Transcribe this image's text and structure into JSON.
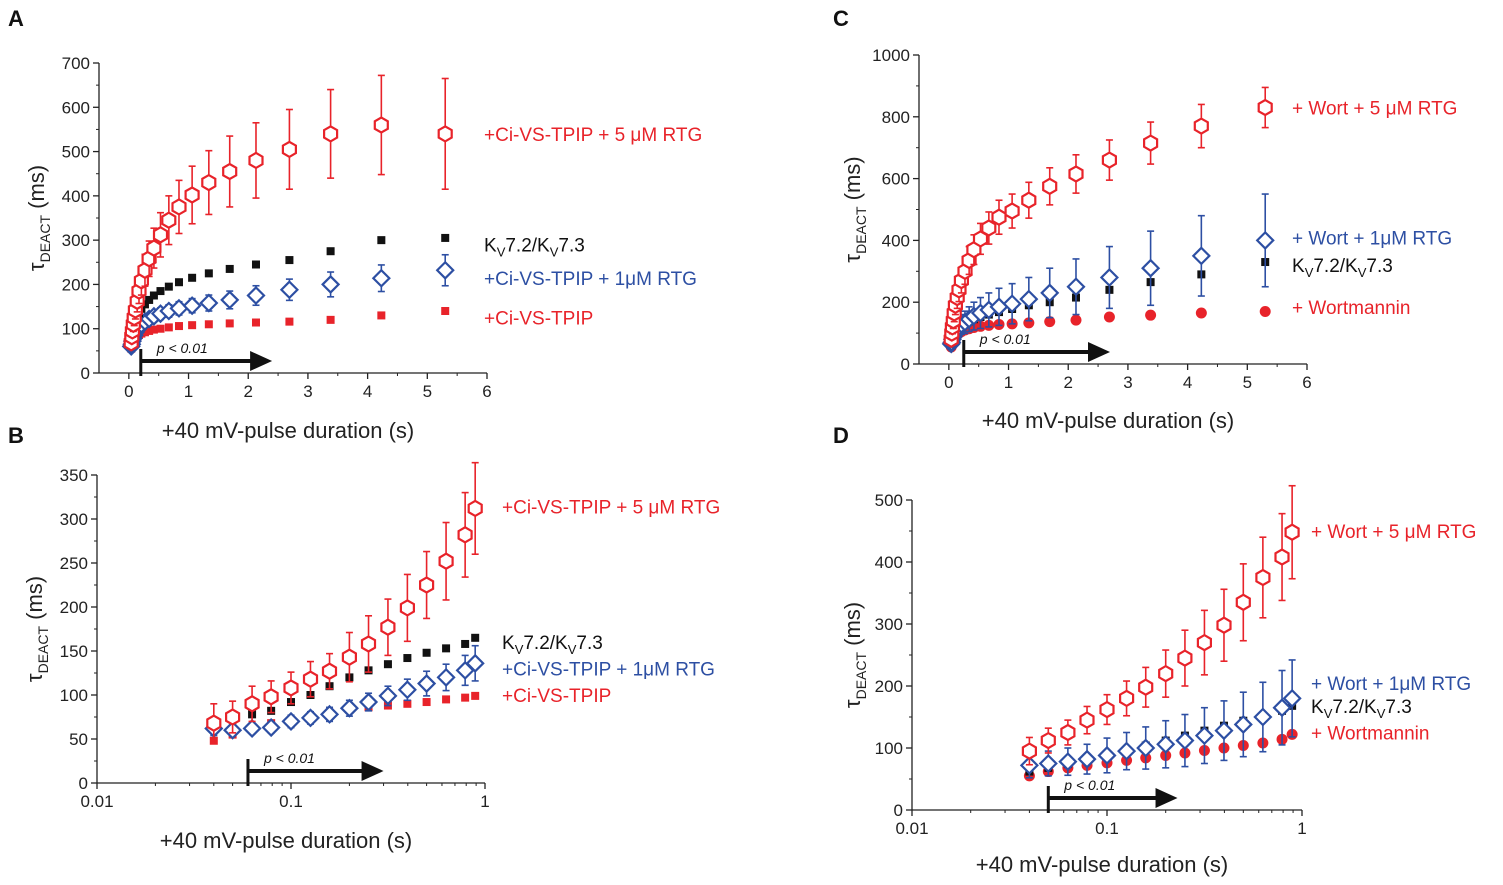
{
  "figure": {
    "colors": {
      "red": "#e8232a",
      "blue": "#2d4fa3",
      "black": "#111111"
    }
  },
  "chart_data": [
    {
      "id": "A",
      "panel_label": "A",
      "type": "scatter",
      "xscale": "linear",
      "xlim": [
        -0.5,
        6
      ],
      "ylim": [
        0,
        700
      ],
      "xticks": [
        0,
        1,
        2,
        3,
        4,
        5,
        6
      ],
      "xtick_labels": [
        "0",
        "1",
        "2",
        "3",
        "4",
        "5",
        "6"
      ],
      "yticks": [
        0,
        100,
        200,
        300,
        400,
        500,
        600,
        700
      ],
      "ytick_labels": [
        "0",
        "100",
        "200",
        "300",
        "400",
        "500",
        "600",
        "700"
      ],
      "xlabel": "+40 mV-pulse duration (s)",
      "ylabel_main": "τ",
      "ylabel_sub": "DEACT",
      "ylabel_unit": " (ms)",
      "pvalue": {
        "text": "p < 0.01",
        "x_start": 0.2,
        "x_end": 2.4
      },
      "x": [
        0.04,
        0.05,
        0.06,
        0.075,
        0.09,
        0.11,
        0.14,
        0.17,
        0.21,
        0.27,
        0.34,
        0.42,
        0.53,
        0.67,
        0.84,
        1.06,
        1.34,
        1.69,
        2.13,
        2.69,
        3.38,
        4.23,
        5.3
      ],
      "series": [
        {
          "name": "+Ci-VS-TPIP + 5 μM RTG",
          "marker": "hexagon-open",
          "color": "red",
          "values": [
            68,
            82,
            95,
            110,
            125,
            142,
            162,
            185,
            208,
            232,
            258,
            282,
            312,
            345,
            375,
            402,
            430,
            455,
            480,
            505,
            540,
            560,
            540
          ],
          "errors": [
            10,
            12,
            14,
            16,
            18,
            20,
            24,
            28,
            32,
            36,
            40,
            45,
            50,
            55,
            60,
            65,
            72,
            80,
            85,
            90,
            100,
            112,
            125
          ]
        },
        {
          "name": "KV7.2/KV7.3",
          "marker": "square",
          "color": "black",
          "values": [
            65,
            75,
            85,
            95,
            105,
            115,
            125,
            135,
            145,
            155,
            165,
            175,
            185,
            195,
            205,
            215,
            225,
            235,
            245,
            255,
            275,
            300,
            305
          ],
          "errors": []
        },
        {
          "name": "+Ci-VS-TPIP + 1μM RTG",
          "marker": "diamond-open",
          "color": "blue",
          "values": [
            60,
            65,
            72,
            78,
            85,
            92,
            98,
            104,
            110,
            116,
            122,
            128,
            134,
            140,
            146,
            152,
            158,
            165,
            175,
            188,
            200,
            214,
            232
          ],
          "errors": [
            6,
            6,
            7,
            7,
            8,
            8,
            9,
            9,
            10,
            10,
            11,
            12,
            13,
            14,
            15,
            16,
            18,
            20,
            22,
            24,
            28,
            30,
            35
          ]
        },
        {
          "name": "+Ci-VS-TPIP",
          "marker": "square",
          "color": "red",
          "values": [
            55,
            60,
            65,
            70,
            74,
            78,
            82,
            86,
            89,
            92,
            95,
            98,
            100,
            103,
            106,
            108,
            110,
            112,
            114,
            116,
            120,
            130,
            140
          ],
          "errors": []
        }
      ],
      "legend": [
        {
          "text": "+Ci-VS-TPIP + 5 μM RTG",
          "color": "red",
          "y": 540
        },
        {
          "text": "KV7.2/KV7.3",
          "color": "black",
          "y": 290,
          "k": true
        },
        {
          "text": "+Ci-VS-TPIP + 1μM RTG",
          "color": "blue",
          "y": 215
        },
        {
          "text": "+Ci-VS-TPIP",
          "color": "red",
          "y": 125
        }
      ]
    },
    {
      "id": "B",
      "panel_label": "B",
      "type": "scatter",
      "xscale": "log",
      "xlim": [
        0.01,
        1
      ],
      "ylim": [
        0,
        350
      ],
      "xticks": [
        0.01,
        0.1,
        1
      ],
      "xtick_labels": [
        "0.01",
        "0.1",
        "1"
      ],
      "yticks": [
        0,
        50,
        100,
        150,
        200,
        250,
        300,
        350
      ],
      "ytick_labels": [
        "0",
        "50",
        "100",
        "150",
        "200",
        "250",
        "300",
        "350"
      ],
      "xlabel": "+40 mV-pulse duration (s)",
      "ylabel_main": "τ",
      "ylabel_sub": "DEACT",
      "ylabel_unit": " (ms)",
      "pvalue": {
        "text": "p < 0.01",
        "x_start": 0.06,
        "x_end": 0.3
      },
      "x": [
        0.04,
        0.05,
        0.063,
        0.079,
        0.1,
        0.126,
        0.158,
        0.2,
        0.251,
        0.316,
        0.398,
        0.5,
        0.63,
        0.79,
        0.89
      ],
      "series": [
        {
          "name": "+Ci-VS-TPIP + 5 μM RTG",
          "marker": "hexagon-open",
          "color": "red",
          "values": [
            68,
            75,
            90,
            98,
            108,
            118,
            127,
            143,
            158,
            177,
            199,
            225,
            252,
            282,
            312
          ],
          "errors": [
            22,
            18,
            20,
            18,
            18,
            20,
            20,
            28,
            32,
            32,
            38,
            38,
            44,
            48,
            52
          ]
        },
        {
          "name": "KV7.2/KV7.3",
          "marker": "square",
          "color": "black",
          "values": [
            68,
            72,
            78,
            82,
            92,
            100,
            110,
            120,
            128,
            135,
            142,
            148,
            153,
            158,
            165
          ],
          "errors": []
        },
        {
          "name": "+Ci-VS-TPIP + 1μM RTG",
          "marker": "diamond-open",
          "color": "blue",
          "values": [
            62,
            60,
            62,
            63,
            70,
            74,
            78,
            85,
            92,
            99,
            106,
            113,
            120,
            128,
            136
          ],
          "errors": [
            8,
            6,
            6,
            6,
            7,
            7,
            8,
            9,
            10,
            11,
            12,
            14,
            15,
            17,
            20
          ]
        },
        {
          "name": "+Ci-VS-TPIP",
          "marker": "square",
          "color": "red",
          "values": [
            48,
            55,
            62,
            68,
            72,
            76,
            80,
            83,
            86,
            88,
            90,
            92,
            95,
            97,
            99
          ],
          "errors": []
        }
      ],
      "legend": [
        {
          "text": "+Ci-VS-TPIP + 5 μM RTG",
          "color": "red",
          "y": 314
        },
        {
          "text": "KV7.2/KV7.3",
          "color": "black",
          "y": 160,
          "k": true
        },
        {
          "text": "+Ci-VS-TPIP + 1μM RTG",
          "color": "blue",
          "y": 130
        },
        {
          "text": "+Ci-VS-TPIP",
          "color": "red",
          "y": 100
        }
      ]
    },
    {
      "id": "C",
      "panel_label": "C",
      "type": "scatter",
      "xscale": "linear",
      "xlim": [
        -0.5,
        6
      ],
      "ylim": [
        0,
        1000
      ],
      "xticks": [
        0,
        1,
        2,
        3,
        4,
        5,
        6
      ],
      "xtick_labels": [
        "0",
        "1",
        "2",
        "3",
        "4",
        "5",
        "6"
      ],
      "yticks": [
        0,
        200,
        400,
        600,
        800,
        1000
      ],
      "ytick_labels": [
        "0",
        "200",
        "400",
        "600",
        "800",
        "1000"
      ],
      "xlabel": "+40 mV-pulse duration (s)",
      "ylabel_main": "τ",
      "ylabel_sub": "DEACT",
      "ylabel_unit": " (ms)",
      "pvalue": {
        "text": "p < 0.01",
        "x_start": 0.25,
        "x_end": 2.7
      },
      "x": [
        0.04,
        0.05,
        0.06,
        0.075,
        0.09,
        0.11,
        0.14,
        0.17,
        0.21,
        0.27,
        0.34,
        0.42,
        0.53,
        0.67,
        0.84,
        1.06,
        1.34,
        1.69,
        2.13,
        2.69,
        3.38,
        4.23,
        5.3
      ],
      "series": [
        {
          "name": "+ Wort + 5 μM RTG",
          "marker": "hexagon-open",
          "color": "red",
          "values": [
            80,
            100,
            120,
            140,
            165,
            190,
            215,
            240,
            270,
            300,
            335,
            370,
            405,
            440,
            475,
            495,
            530,
            575,
            615,
            660,
            715,
            770,
            830
          ],
          "errors": [
            15,
            20,
            22,
            25,
            28,
            30,
            35,
            38,
            40,
            42,
            45,
            48,
            50,
            52,
            55,
            55,
            58,
            60,
            62,
            65,
            68,
            70,
            65
          ]
        },
        {
          "name": "+ Wort + 1μM RTG",
          "marker": "diamond-open",
          "color": "blue",
          "values": [
            65,
            70,
            80,
            88,
            95,
            105,
            112,
            120,
            128,
            135,
            145,
            155,
            165,
            175,
            185,
            195,
            210,
            230,
            250,
            280,
            310,
            350,
            400
          ],
          "errors": [
            10,
            12,
            14,
            16,
            18,
            20,
            24,
            28,
            32,
            36,
            40,
            45,
            50,
            55,
            60,
            65,
            70,
            80,
            90,
            100,
            120,
            130,
            150
          ]
        },
        {
          "name": "KV7.2/KV7.3",
          "marker": "square",
          "color": "black",
          "values": [
            60,
            70,
            78,
            85,
            92,
            100,
            108,
            115,
            122,
            130,
            138,
            145,
            152,
            160,
            168,
            178,
            190,
            200,
            215,
            240,
            265,
            290,
            330
          ],
          "errors": []
        },
        {
          "name": "+ Wortmannin",
          "marker": "circle",
          "color": "red",
          "values": [
            55,
            62,
            70,
            75,
            82,
            88,
            95,
            100,
            105,
            110,
            114,
            118,
            122,
            125,
            128,
            130,
            133,
            137,
            142,
            152,
            158,
            165,
            170
          ],
          "errors": []
        }
      ],
      "legend": [
        {
          "text": "+ Wort + 5 μM RTG",
          "color": "red",
          "y": 830
        },
        {
          "text": "+ Wort + 1μM RTG",
          "color": "blue",
          "y": 410
        },
        {
          "text": "KV7.2/KV7.3",
          "color": "black",
          "y": 320,
          "k": true
        },
        {
          "text": "+ Wortmannin",
          "color": "red",
          "y": 185
        }
      ]
    },
    {
      "id": "D",
      "panel_label": "D",
      "type": "scatter",
      "xscale": "log",
      "xlim": [
        0.01,
        1
      ],
      "ylim": [
        0,
        500
      ],
      "xticks": [
        0.01,
        0.1,
        1
      ],
      "xtick_labels": [
        "0.01",
        "0.1",
        "1"
      ],
      "yticks": [
        0,
        100,
        200,
        300,
        400,
        500
      ],
      "ytick_labels": [
        "0",
        "100",
        "200",
        "300",
        "400",
        "500"
      ],
      "xlabel": "+40 mV-pulse duration (s)",
      "ylabel_main": "τ",
      "ylabel_sub": "DEACT",
      "ylabel_unit": " (ms)",
      "pvalue": {
        "text": "p < 0.01",
        "x_start": 0.05,
        "x_end": 0.23
      },
      "x": [
        0.04,
        0.05,
        0.063,
        0.079,
        0.1,
        0.126,
        0.158,
        0.2,
        0.251,
        0.316,
        0.398,
        0.5,
        0.63,
        0.79,
        0.89
      ],
      "series": [
        {
          "name": "+ Wort + 5 μM RTG",
          "marker": "hexagon-open",
          "color": "red",
          "values": [
            95,
            112,
            125,
            145,
            162,
            180,
            198,
            220,
            245,
            270,
            298,
            335,
            375,
            408,
            448
          ],
          "errors": [
            22,
            20,
            20,
            22,
            24,
            28,
            32,
            38,
            45,
            52,
            58,
            62,
            65,
            70,
            75
          ]
        },
        {
          "name": "+ Wort + 1μM RTG",
          "marker": "diamond-open",
          "color": "blue",
          "values": [
            72,
            75,
            78,
            82,
            88,
            95,
            100,
            106,
            112,
            120,
            128,
            138,
            150,
            165,
            180
          ],
          "errors": [
            20,
            20,
            22,
            24,
            28,
            30,
            34,
            38,
            42,
            45,
            48,
            52,
            56,
            60,
            62
          ]
        },
        {
          "name": "KV7.2/KV7.3",
          "marker": "square",
          "color": "black",
          "values": [
            62,
            68,
            74,
            80,
            88,
            96,
            104,
            112,
            120,
            128,
            136,
            144,
            152,
            160,
            168
          ],
          "errors": []
        },
        {
          "name": "+ Wortmannin",
          "marker": "circle",
          "color": "red",
          "values": [
            55,
            62,
            68,
            72,
            76,
            80,
            84,
            88,
            92,
            96,
            100,
            104,
            108,
            114,
            122
          ],
          "errors": []
        }
      ],
      "legend": [
        {
          "text": "+ Wort + 5 μM RTG",
          "color": "red",
          "y": 450
        },
        {
          "text": "+ Wort + 1μM RTG",
          "color": "blue",
          "y": 205
        },
        {
          "text": "KV7.2/KV7.3",
          "color": "black",
          "y": 168,
          "k": true
        },
        {
          "text": "+ Wortmannin",
          "color": "red",
          "y": 125
        }
      ]
    }
  ]
}
